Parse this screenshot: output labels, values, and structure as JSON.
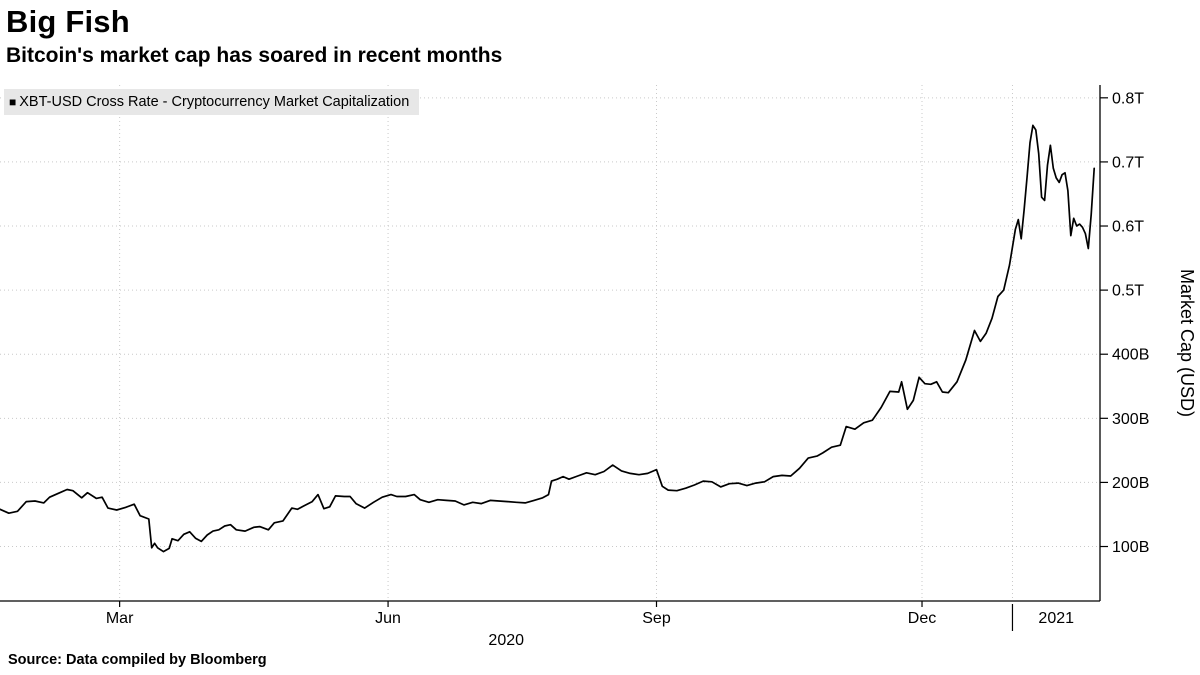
{
  "header": {
    "title": "Big Fish",
    "subtitle": "Bitcoin's market cap has soared in recent months"
  },
  "legend": {
    "marker": "■",
    "label": "XBT-USD Cross Rate - Cryptocurrency Market Capitalization"
  },
  "footer": {
    "source": "Source: Data compiled by Bloomberg"
  },
  "chart_data": {
    "type": "line",
    "title": "Big Fish",
    "subtitle": "Bitcoin's market cap has soared in recent months",
    "ylabel": "Market Cap (USD)",
    "unit": "USD billions",
    "grid": true,
    "legend_position": "top-left",
    "x_domain": [
      "2020-01-20",
      "2021-01-31"
    ],
    "ylim": [
      15,
      820
    ],
    "colors": {
      "line": "#000000",
      "grid": "#c9c9c9",
      "axis": "#000000",
      "legend_bg": "#e7e7e7",
      "text": "#000000"
    },
    "y_ticks": [
      {
        "v": 100,
        "label": "100B"
      },
      {
        "v": 200,
        "label": "200B"
      },
      {
        "v": 300,
        "label": "300B"
      },
      {
        "v": 400,
        "label": "400B"
      },
      {
        "v": 500,
        "label": "0.5T"
      },
      {
        "v": 600,
        "label": "0.6T"
      },
      {
        "v": 700,
        "label": "0.7T"
      },
      {
        "v": 800,
        "label": "0.8T"
      }
    ],
    "x_ticks": [
      {
        "date": "2020-03-01",
        "label": "Mar"
      },
      {
        "date": "2020-06-01",
        "label": "Jun"
      },
      {
        "date": "2020-09-01",
        "label": "Sep"
      },
      {
        "date": "2020-12-01",
        "label": "Dec"
      }
    ],
    "year_divider": "2021-01-01",
    "year_labels": [
      {
        "label": "2020",
        "from": "2020-01-20",
        "to": "2021-01-01",
        "row": "lower"
      },
      {
        "label": "2021",
        "from": "2021-01-01",
        "to": "2021-01-31",
        "row": "upper"
      }
    ],
    "series": [
      {
        "name": "XBT-USD Cross Rate - Cryptocurrency Market Capitalization",
        "color": "#000000",
        "points": [
          [
            "2020-01-20",
            158
          ],
          [
            "2020-01-23",
            152
          ],
          [
            "2020-01-26",
            155
          ],
          [
            "2020-01-29",
            170
          ],
          [
            "2020-02-01",
            171
          ],
          [
            "2020-02-04",
            168
          ],
          [
            "2020-02-06",
            177
          ],
          [
            "2020-02-09",
            183
          ],
          [
            "2020-02-12",
            189
          ],
          [
            "2020-02-14",
            187
          ],
          [
            "2020-02-17",
            176
          ],
          [
            "2020-02-19",
            184
          ],
          [
            "2020-02-22",
            175
          ],
          [
            "2020-02-24",
            177
          ],
          [
            "2020-02-26",
            160
          ],
          [
            "2020-02-29",
            157
          ],
          [
            "2020-03-03",
            161
          ],
          [
            "2020-03-06",
            166
          ],
          [
            "2020-03-08",
            148
          ],
          [
            "2020-03-11",
            143
          ],
          [
            "2020-03-12",
            98
          ],
          [
            "2020-03-13",
            105
          ],
          [
            "2020-03-14",
            98
          ],
          [
            "2020-03-16",
            92
          ],
          [
            "2020-03-18",
            97
          ],
          [
            "2020-03-19",
            112
          ],
          [
            "2020-03-21",
            109
          ],
          [
            "2020-03-23",
            119
          ],
          [
            "2020-03-25",
            123
          ],
          [
            "2020-03-27",
            113
          ],
          [
            "2020-03-29",
            108
          ],
          [
            "2020-03-31",
            118
          ],
          [
            "2020-04-02",
            124
          ],
          [
            "2020-04-04",
            126
          ],
          [
            "2020-04-06",
            132
          ],
          [
            "2020-04-08",
            134
          ],
          [
            "2020-04-10",
            126
          ],
          [
            "2020-04-13",
            124
          ],
          [
            "2020-04-16",
            130
          ],
          [
            "2020-04-18",
            131
          ],
          [
            "2020-04-21",
            126
          ],
          [
            "2020-04-23",
            137
          ],
          [
            "2020-04-26",
            140
          ],
          [
            "2020-04-29",
            160
          ],
          [
            "2020-05-01",
            158
          ],
          [
            "2020-05-03",
            163
          ],
          [
            "2020-05-06",
            170
          ],
          [
            "2020-05-08",
            181
          ],
          [
            "2020-05-10",
            159
          ],
          [
            "2020-05-12",
            162
          ],
          [
            "2020-05-14",
            179
          ],
          [
            "2020-05-17",
            178
          ],
          [
            "2020-05-19",
            178
          ],
          [
            "2020-05-21",
            167
          ],
          [
            "2020-05-24",
            160
          ],
          [
            "2020-05-27",
            169
          ],
          [
            "2020-05-30",
            177
          ],
          [
            "2020-06-02",
            181
          ],
          [
            "2020-06-04",
            178
          ],
          [
            "2020-06-07",
            178
          ],
          [
            "2020-06-10",
            181
          ],
          [
            "2020-06-12",
            173
          ],
          [
            "2020-06-15",
            169
          ],
          [
            "2020-06-18",
            173
          ],
          [
            "2020-06-21",
            172
          ],
          [
            "2020-06-24",
            171
          ],
          [
            "2020-06-27",
            165
          ],
          [
            "2020-06-30",
            169
          ],
          [
            "2020-07-03",
            167
          ],
          [
            "2020-07-06",
            172
          ],
          [
            "2020-07-09",
            171
          ],
          [
            "2020-07-12",
            170
          ],
          [
            "2020-07-15",
            169
          ],
          [
            "2020-07-18",
            168
          ],
          [
            "2020-07-21",
            172
          ],
          [
            "2020-07-24",
            176
          ],
          [
            "2020-07-26",
            181
          ],
          [
            "2020-07-27",
            202
          ],
          [
            "2020-07-29",
            205
          ],
          [
            "2020-07-31",
            209
          ],
          [
            "2020-08-02",
            205
          ],
          [
            "2020-08-05",
            210
          ],
          [
            "2020-08-08",
            215
          ],
          [
            "2020-08-11",
            212
          ],
          [
            "2020-08-14",
            217
          ],
          [
            "2020-08-17",
            227
          ],
          [
            "2020-08-20",
            218
          ],
          [
            "2020-08-23",
            214
          ],
          [
            "2020-08-26",
            212
          ],
          [
            "2020-08-29",
            214
          ],
          [
            "2020-09-01",
            220
          ],
          [
            "2020-09-03",
            194
          ],
          [
            "2020-09-05",
            188
          ],
          [
            "2020-09-08",
            187
          ],
          [
            "2020-09-11",
            191
          ],
          [
            "2020-09-14",
            196
          ],
          [
            "2020-09-17",
            202
          ],
          [
            "2020-09-20",
            201
          ],
          [
            "2020-09-23",
            193
          ],
          [
            "2020-09-26",
            198
          ],
          [
            "2020-09-29",
            199
          ],
          [
            "2020-10-02",
            195
          ],
          [
            "2020-10-05",
            199
          ],
          [
            "2020-10-08",
            201
          ],
          [
            "2020-10-11",
            209
          ],
          [
            "2020-10-14",
            211
          ],
          [
            "2020-10-17",
            210
          ],
          [
            "2020-10-20",
            222
          ],
          [
            "2020-10-23",
            238
          ],
          [
            "2020-10-26",
            241
          ],
          [
            "2020-10-28",
            246
          ],
          [
            "2020-10-31",
            255
          ],
          [
            "2020-11-03",
            258
          ],
          [
            "2020-11-05",
            287
          ],
          [
            "2020-11-08",
            283
          ],
          [
            "2020-11-11",
            293
          ],
          [
            "2020-11-14",
            297
          ],
          [
            "2020-11-17",
            317
          ],
          [
            "2020-11-20",
            342
          ],
          [
            "2020-11-23",
            341
          ],
          [
            "2020-11-24",
            357
          ],
          [
            "2020-11-26",
            314
          ],
          [
            "2020-11-28",
            328
          ],
          [
            "2020-11-30",
            364
          ],
          [
            "2020-12-02",
            354
          ],
          [
            "2020-12-04",
            353
          ],
          [
            "2020-12-06",
            357
          ],
          [
            "2020-12-08",
            341
          ],
          [
            "2020-12-10",
            340
          ],
          [
            "2020-12-13",
            357
          ],
          [
            "2020-12-16",
            391
          ],
          [
            "2020-12-19",
            437
          ],
          [
            "2020-12-21",
            420
          ],
          [
            "2020-12-23",
            433
          ],
          [
            "2020-12-25",
            456
          ],
          [
            "2020-12-27",
            490
          ],
          [
            "2020-12-29",
            500
          ],
          [
            "2020-12-31",
            539
          ],
          [
            "2021-01-02",
            595
          ],
          [
            "2021-01-03",
            610
          ],
          [
            "2021-01-04",
            580
          ],
          [
            "2021-01-05",
            625
          ],
          [
            "2021-01-06",
            677
          ],
          [
            "2021-01-07",
            730
          ],
          [
            "2021-01-08",
            757
          ],
          [
            "2021-01-09",
            750
          ],
          [
            "2021-01-10",
            713
          ],
          [
            "2021-01-11",
            645
          ],
          [
            "2021-01-12",
            640
          ],
          [
            "2021-01-13",
            695
          ],
          [
            "2021-01-14",
            726
          ],
          [
            "2021-01-15",
            690
          ],
          [
            "2021-01-16",
            675
          ],
          [
            "2021-01-17",
            668
          ],
          [
            "2021-01-18",
            680
          ],
          [
            "2021-01-19",
            683
          ],
          [
            "2021-01-20",
            655
          ],
          [
            "2021-01-21",
            585
          ],
          [
            "2021-01-22",
            612
          ],
          [
            "2021-01-23",
            600
          ],
          [
            "2021-01-24",
            603
          ],
          [
            "2021-01-25",
            598
          ],
          [
            "2021-01-26",
            588
          ],
          [
            "2021-01-27",
            565
          ],
          [
            "2021-01-28",
            618
          ],
          [
            "2021-01-29",
            690
          ]
        ]
      }
    ]
  }
}
